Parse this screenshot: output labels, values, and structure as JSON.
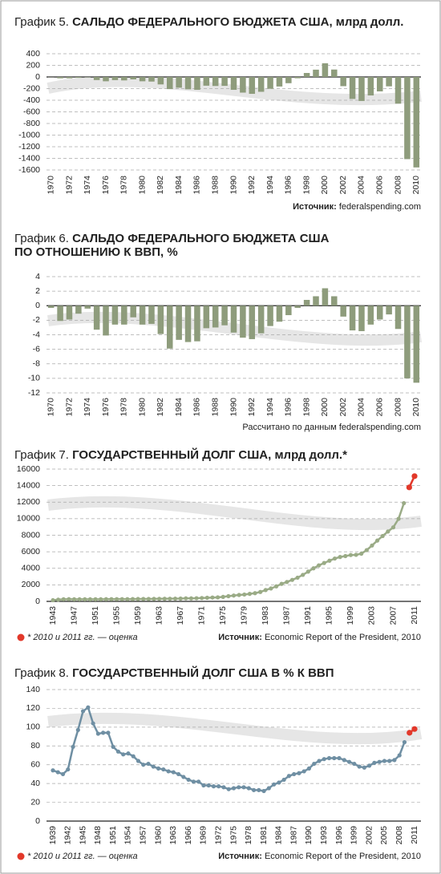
{
  "chart_data": [
    {
      "type": "bar",
      "title_number": "График 5.",
      "title": [
        "САЛЬДО ФЕДЕРАЛЬНОГО БЮДЖЕТА США, млрд долл."
      ],
      "source_label": "Источник:",
      "source": "federalspending.com",
      "categories": [
        "1970",
        null,
        "1972",
        null,
        "1974",
        null,
        "1976",
        null,
        "1978",
        null,
        "1980",
        null,
        "1982",
        null,
        "1984",
        null,
        "1986",
        null,
        "1988",
        null,
        "1990",
        null,
        "1992",
        null,
        "1994",
        null,
        "1996",
        null,
        "1998",
        null,
        "2000",
        null,
        "2002",
        null,
        "2004",
        null,
        "2006",
        null,
        "2008",
        null,
        "2010"
      ],
      "values": [
        -3,
        -23,
        -23,
        -15,
        -6,
        -53,
        -74,
        -54,
        -59,
        -41,
        -74,
        -79,
        -128,
        -208,
        -185,
        -212,
        -221,
        -150,
        -155,
        -153,
        -221,
        -269,
        -290,
        -255,
        -203,
        -164,
        -107,
        -22,
        69,
        126,
        236,
        128,
        -158,
        -378,
        -413,
        -318,
        -248,
        -161,
        -459,
        -1413,
        -1556
      ],
      "color": "#8e9c7c",
      "ylim": [
        -1600,
        400
      ],
      "yticks": [
        -1600,
        -1400,
        -1200,
        -1000,
        -800,
        -600,
        -400,
        -200,
        0,
        200,
        400
      ],
      "grid": true
    },
    {
      "type": "bar",
      "title_number": "График 6.",
      "title": [
        "САЛЬДО ФЕДЕРАЛЬНОГО БЮДЖЕТА США",
        "ПО ОТНОШЕНИЮ К ВВП, %"
      ],
      "source": "Рассчитано по данным federalspending.com",
      "categories": [
        "1970",
        null,
        "1972",
        null,
        "1974",
        null,
        "1976",
        null,
        "1978",
        null,
        "1980",
        null,
        "1982",
        null,
        "1984",
        null,
        "1986",
        null,
        "1988",
        null,
        "1990",
        null,
        "1992",
        null,
        "1994",
        null,
        "1996",
        null,
        "1998",
        null,
        "2000",
        null,
        "2002",
        null,
        "2004",
        null,
        "2006",
        null,
        "2008",
        null,
        "2010"
      ],
      "values": [
        -0.3,
        -2.1,
        -1.9,
        -1.1,
        -0.4,
        -3.3,
        -4.1,
        -2.6,
        -2.6,
        -1.6,
        -2.6,
        -2.5,
        -3.9,
        -5.9,
        -4.7,
        -5.0,
        -4.9,
        -3.1,
        -3.0,
        -2.7,
        -3.7,
        -4.4,
        -4.6,
        -3.8,
        -2.8,
        -2.2,
        -1.3,
        -0.3,
        0.8,
        1.3,
        2.4,
        1.3,
        -1.5,
        -3.4,
        -3.5,
        -2.6,
        -1.9,
        -1.2,
        -3.2,
        -10.0,
        -10.6
      ],
      "color": "#8e9c7c",
      "ylim": [
        -12,
        4
      ],
      "yticks": [
        -12,
        -10,
        -8,
        -6,
        -4,
        -2,
        0,
        2,
        4
      ],
      "grid": true
    },
    {
      "type": "line",
      "title_number": "График 7.",
      "title": [
        "ГОСУДАРСТВЕННЫЙ ДОЛГ США, млрд долл.*"
      ],
      "source_label": "Источник:",
      "source": "Economic Report of the President, 2010",
      "categories": [
        "1943",
        null,
        null,
        null,
        "1947",
        null,
        null,
        null,
        "1951",
        null,
        null,
        null,
        "1955",
        null,
        null,
        null,
        "1959",
        null,
        null,
        null,
        "1963",
        null,
        null,
        null,
        "1967",
        null,
        null,
        null,
        "1971",
        null,
        null,
        null,
        "1975",
        null,
        null,
        null,
        "1979",
        null,
        null,
        null,
        "1983",
        null,
        null,
        null,
        "1987",
        null,
        null,
        null,
        "1991",
        null,
        null,
        null,
        "1995",
        null,
        null,
        null,
        "1999",
        null,
        null,
        null,
        "2003",
        null,
        null,
        null,
        "2007",
        null,
        null,
        null,
        "2011"
      ],
      "series": [
        {
          "color": "#9aab86",
          "values": [
            142,
            204,
            260,
            271,
            257,
            252,
            253,
            257,
            255,
            259,
            266,
            271,
            274,
            273,
            272,
            280,
            288,
            291,
            293,
            303,
            311,
            317,
            322,
            328,
            340,
            369,
            366,
            381,
            408,
            436,
            466,
            484,
            542,
            629,
            706,
            777,
            829,
            909,
            995,
            1137,
            1372,
            1565,
            1817,
            2121,
            2346,
            2601,
            2868,
            3206,
            3598,
            4002,
            4351,
            4643,
            4921,
            5181,
            5369,
            5478,
            5606,
            5629,
            5770,
            6198,
            6760,
            7355,
            7905,
            8451,
            8951,
            9986,
            11876,
            null,
            null
          ]
        },
        {
          "name": "* 2010 и 2011 гг. — оценка",
          "color": "#e2382a",
          "values": [
            null,
            null,
            null,
            null,
            null,
            null,
            null,
            null,
            null,
            null,
            null,
            null,
            null,
            null,
            null,
            null,
            null,
            null,
            null,
            null,
            null,
            null,
            null,
            null,
            null,
            null,
            null,
            null,
            null,
            null,
            null,
            null,
            null,
            null,
            null,
            null,
            null,
            null,
            null,
            null,
            null,
            null,
            null,
            null,
            null,
            null,
            null,
            null,
            null,
            null,
            null,
            null,
            null,
            null,
            null,
            null,
            null,
            null,
            null,
            null,
            null,
            null,
            null,
            null,
            null,
            null,
            null,
            13786,
            15144
          ]
        }
      ],
      "ylim": [
        0,
        16000
      ],
      "yticks": [
        0,
        2000,
        4000,
        6000,
        8000,
        10000,
        12000,
        14000,
        16000
      ],
      "grid": true
    },
    {
      "type": "line",
      "title_number": "График 8.",
      "title": [
        "ГОСУДАРСТВЕННЫЙ ДОЛГ США В % К ВВП"
      ],
      "source_label": "Источник:",
      "source": "Economic Report of the President, 2010",
      "categories": [
        "1939",
        null,
        null,
        "1942",
        null,
        null,
        "1945",
        null,
        null,
        "1948",
        null,
        null,
        "1951",
        null,
        null,
        "1954",
        null,
        null,
        "1957",
        null,
        null,
        "1960",
        null,
        null,
        "1963",
        null,
        null,
        "1966",
        null,
        null,
        "1969",
        null,
        null,
        "1972",
        null,
        null,
        "1975",
        null,
        null,
        "1978",
        null,
        null,
        "1981",
        null,
        null,
        "1984",
        null,
        null,
        "1987",
        null,
        null,
        "1990",
        null,
        null,
        "1993",
        null,
        null,
        "1996",
        null,
        null,
        "1999",
        null,
        null,
        "2002",
        null,
        null,
        "2005",
        null,
        null,
        "2008",
        null,
        null,
        "2011"
      ],
      "series": [
        {
          "color": "#6f8fa3",
          "values": [
            54,
            52,
            50,
            55,
            79,
            97,
            117,
            121,
            104,
            93,
            94,
            94,
            79,
            74,
            71,
            72,
            69,
            64,
            60,
            61,
            58,
            56,
            55,
            53,
            52,
            50,
            47,
            44,
            42,
            42,
            38,
            38,
            37,
            37,
            36,
            34,
            35,
            36,
            36,
            35,
            33,
            33,
            32,
            35,
            39,
            41,
            44,
            48,
            50,
            51,
            53,
            56,
            61,
            64,
            66,
            67,
            67,
            67,
            65,
            63,
            61,
            58,
            57,
            59,
            62,
            63,
            64,
            64,
            65,
            70,
            84,
            null,
            null
          ]
        },
        {
          "name": "* 2010 и 2011 гг. — оценка",
          "color": "#e2382a",
          "values": [
            null,
            null,
            null,
            null,
            null,
            null,
            null,
            null,
            null,
            null,
            null,
            null,
            null,
            null,
            null,
            null,
            null,
            null,
            null,
            null,
            null,
            null,
            null,
            null,
            null,
            null,
            null,
            null,
            null,
            null,
            null,
            null,
            null,
            null,
            null,
            null,
            null,
            null,
            null,
            null,
            null,
            null,
            null,
            null,
            null,
            null,
            null,
            null,
            null,
            null,
            null,
            null,
            null,
            null,
            null,
            null,
            null,
            null,
            null,
            null,
            null,
            null,
            null,
            null,
            null,
            null,
            null,
            null,
            null,
            null,
            null,
            94,
            98
          ]
        }
      ],
      "ylim": [
        0,
        140
      ],
      "yticks": [
        0,
        20,
        40,
        60,
        80,
        100,
        120,
        140
      ],
      "grid": true
    }
  ]
}
